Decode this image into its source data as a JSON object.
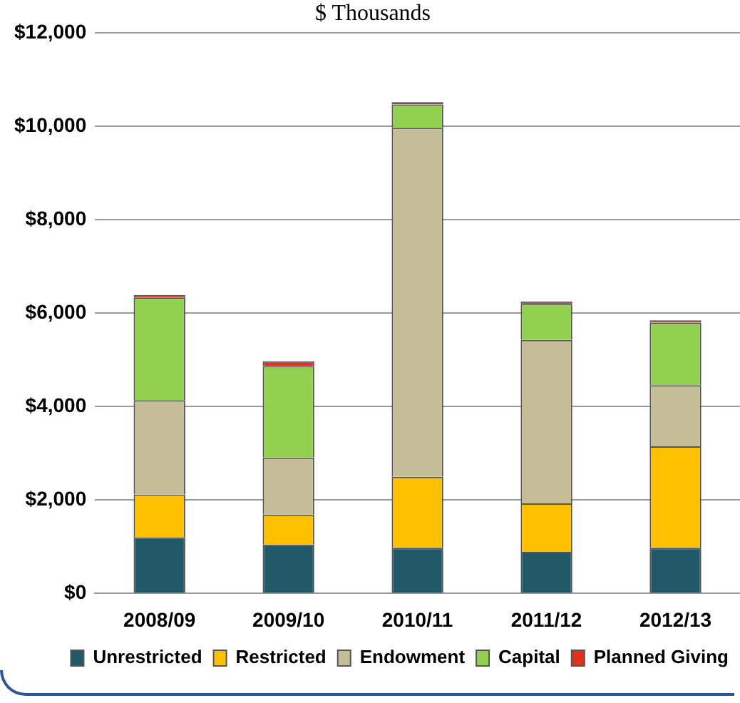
{
  "chart_data": {
    "type": "bar",
    "title": "$ Thousands",
    "categories": [
      "2008/09",
      "2009/10",
      "2010/11",
      "2011/12",
      "2012/13"
    ],
    "stacked": true,
    "series": [
      {
        "name": "Unrestricted",
        "color": "#215968",
        "values": [
          1200,
          1050,
          980,
          890,
          980
        ]
      },
      {
        "name": "Restricted",
        "color": "#ffc000",
        "values": [
          920,
          640,
          1520,
          1040,
          2170
        ]
      },
      {
        "name": "Endowment",
        "color": "#c4bd97",
        "values": [
          2020,
          1220,
          7470,
          3500,
          1310
        ]
      },
      {
        "name": "Capital",
        "color": "#92d050",
        "values": [
          2200,
          1960,
          500,
          770,
          1340
        ]
      },
      {
        "name": "Planned Giving",
        "color": "#e0301e",
        "values": [
          50,
          100,
          50,
          50,
          50
        ]
      }
    ],
    "ylim": [
      0,
      12000
    ],
    "yticks": [
      {
        "value": 0,
        "label": "$0"
      },
      {
        "value": 2000,
        "label": "$2,000"
      },
      {
        "value": 4000,
        "label": "$4,000"
      },
      {
        "value": 6000,
        "label": "$6,000"
      },
      {
        "value": 8000,
        "label": "$8,000"
      },
      {
        "value": 10000,
        "label": "$10,000"
      },
      {
        "value": 12000,
        "label": "$12,000"
      }
    ],
    "grid": "y",
    "legend": "bottom"
  }
}
